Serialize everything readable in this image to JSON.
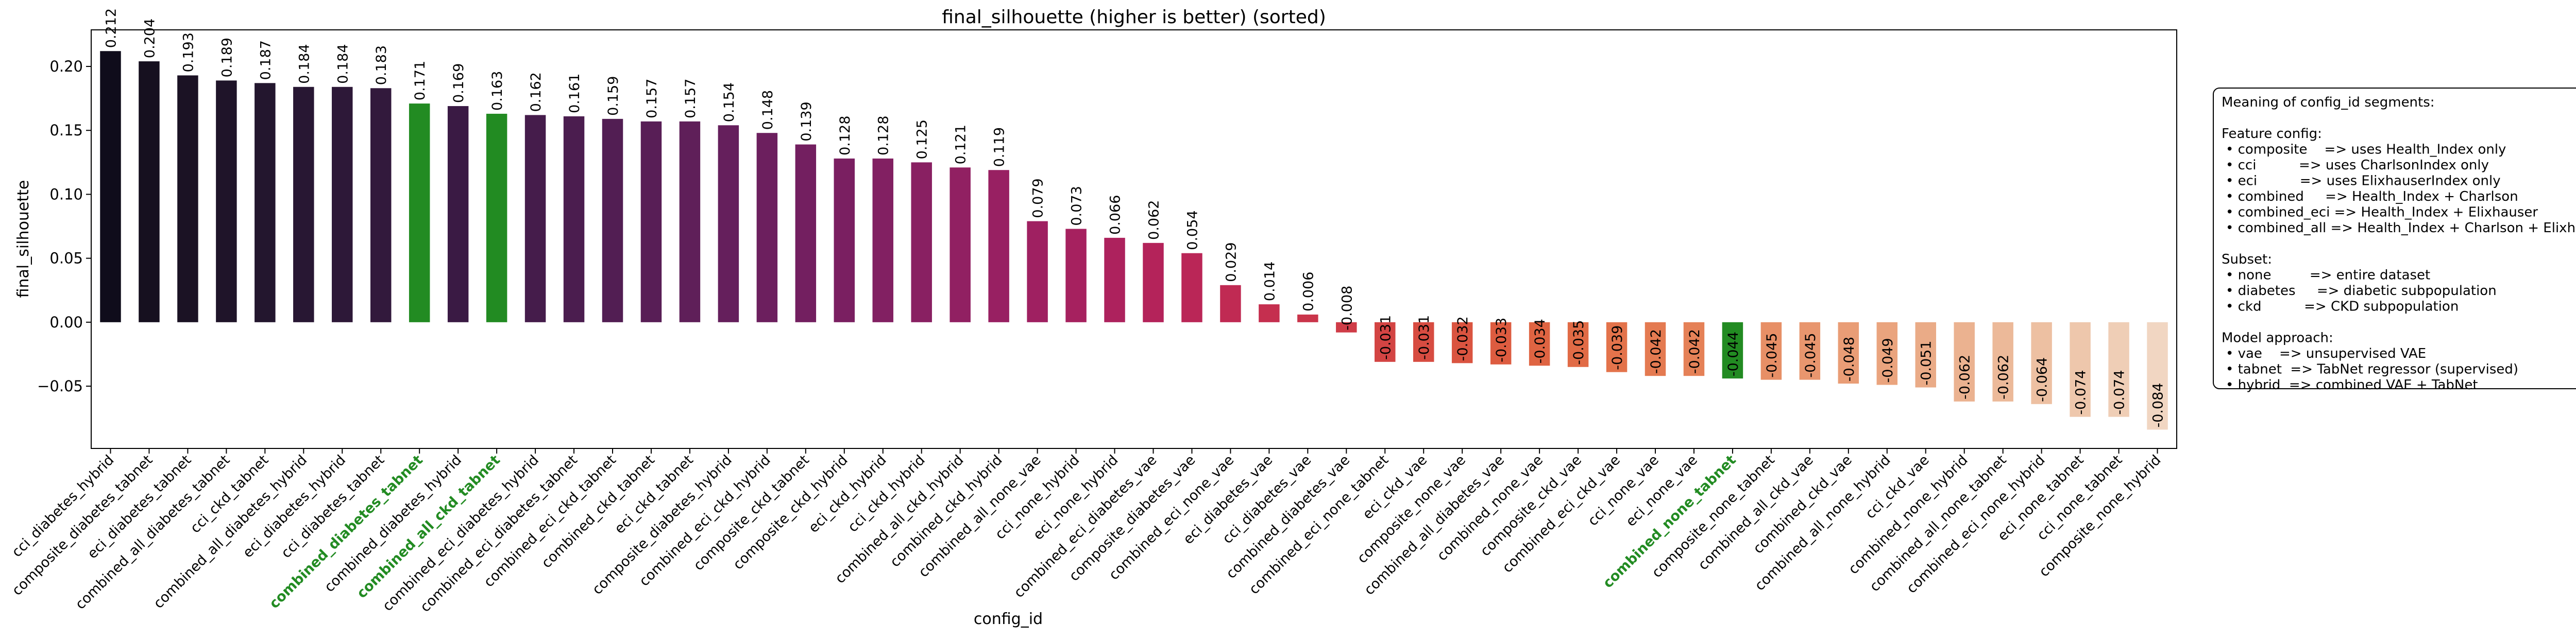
{
  "chart_data": {
    "type": "bar",
    "title": "final_silhouette (higher is better) (sorted)",
    "xlabel": "config_id",
    "ylabel": "final_silhouette",
    "categories": [
      "cci_diabetes_hybrid",
      "composite_diabetes_tabnet",
      "eci_diabetes_tabnet",
      "combined_all_diabetes_tabnet",
      "cci_ckd_tabnet",
      "combined_all_diabetes_hybrid",
      "eci_diabetes_hybrid",
      "cci_diabetes_tabnet",
      "combined_diabetes_tabnet",
      "combined_diabetes_hybrid",
      "combined_all_ckd_tabnet",
      "combined_eci_diabetes_hybrid",
      "combined_eci_diabetes_tabnet",
      "combined_eci_ckd_tabnet",
      "combined_ckd_tabnet",
      "eci_ckd_tabnet",
      "composite_diabetes_hybrid",
      "combined_eci_ckd_hybrid",
      "composite_ckd_tabnet",
      "composite_ckd_hybrid",
      "eci_ckd_hybrid",
      "cci_ckd_hybrid",
      "combined_all_ckd_hybrid",
      "combined_ckd_hybrid",
      "combined_all_none_vae",
      "cci_none_hybrid",
      "eci_none_hybrid",
      "combined_eci_diabetes_vae",
      "composite_diabetes_vae",
      "combined_eci_none_vae",
      "eci_diabetes_vae",
      "cci_diabetes_vae",
      "combined_diabetes_vae",
      "combined_eci_none_tabnet",
      "eci_ckd_vae",
      "composite_none_vae",
      "combined_all_diabetes_vae",
      "combined_none_vae",
      "composite_ckd_vae",
      "combined_eci_ckd_vae",
      "cci_none_vae",
      "eci_none_vae",
      "combined_none_tabnet",
      "composite_none_tabnet",
      "combined_all_ckd_vae",
      "combined_ckd_vae",
      "combined_all_none_hybrid",
      "cci_ckd_vae",
      "combined_none_hybrid",
      "combined_all_none_tabnet",
      "combined_eci_none_hybrid",
      "eci_none_tabnet",
      "cci_none_tabnet",
      "composite_none_hybrid"
    ],
    "values": [
      0.212,
      0.204,
      0.193,
      0.189,
      0.187,
      0.184,
      0.184,
      0.183,
      0.171,
      0.169,
      0.163,
      0.162,
      0.161,
      0.159,
      0.157,
      0.157,
      0.154,
      0.148,
      0.139,
      0.128,
      0.128,
      0.125,
      0.121,
      0.119,
      0.079,
      0.073,
      0.066,
      0.062,
      0.054,
      0.029,
      0.014,
      0.006,
      -0.008,
      -0.031,
      -0.031,
      -0.032,
      -0.033,
      -0.034,
      -0.035,
      -0.039,
      -0.042,
      -0.042,
      -0.044,
      -0.045,
      -0.045,
      -0.048,
      -0.049,
      -0.051,
      -0.062,
      -0.062,
      -0.064,
      -0.074,
      -0.074,
      -0.084
    ],
    "colors": [
      "#0f0c1b",
      "#16101f",
      "#1b1224",
      "#1f1429",
      "#23162e",
      "#281733",
      "#2d1838",
      "#32193c",
      "#228b22",
      "#3a1a44",
      "#228b22",
      "#451c4b",
      "#4b1d4f",
      "#521e53",
      "#581e56",
      "#5f1f59",
      "#651f5c",
      "#6c1f5e",
      "#731f60",
      "#7a1f61",
      "#822062",
      "#892062",
      "#912062",
      "#982062",
      "#9f2061",
      "#a6215f",
      "#ad225d",
      "#b4235a",
      "#ba2657",
      "#c02a53",
      "#c52f4f",
      "#ca354b",
      "#cf3c47",
      "#d34443",
      "#d74c41",
      "#da5440",
      "#dd5c40",
      "#df6442",
      "#e16b46",
      "#e3734b",
      "#e47a51",
      "#e58157",
      "#228b22",
      "#e78f66",
      "#e8966e",
      "#e99d76",
      "#eaa47e",
      "#eaab87",
      "#ebb290",
      "#ecb999",
      "#edc0a2",
      "#eec7ac",
      "#efceb6",
      "#f1d6c2"
    ],
    "highlighted": [
      8,
      10,
      42
    ],
    "highlight_color": "#228b22",
    "ylim": [
      -0.0987,
      0.2286
    ],
    "yticks": [
      {
        "value": -0.05,
        "label": "−0.05"
      },
      {
        "value": 0,
        "label": "0.00"
      },
      {
        "value": 0.05,
        "label": "0.05"
      },
      {
        "value": 0.1,
        "label": "0.10"
      },
      {
        "value": 0.15,
        "label": "0.15"
      },
      {
        "value": 0.2,
        "label": "0.20"
      }
    ],
    "grid": false,
    "legend_box": {
      "title": "Meaning of config_id segments:",
      "sections": [
        {
          "heading": "Feature config:",
          "items": [
            "• composite    => uses Health_Index only",
            "• cci          => uses CharlsonIndex only",
            "• eci          => uses ElixhauserIndex only",
            "• combined     => Health_Index + Charlson",
            "• combined_eci => Health_Index + Elixhauser",
            "• combined_all => Health_Index + Charlson + Elixhauser"
          ]
        },
        {
          "heading": "Subset:",
          "items": [
            "• none         => entire dataset",
            "• diabetes     => diabetic subpopulation",
            "• ckd          => CKD subpopulation"
          ]
        },
        {
          "heading": "Model approach:",
          "items": [
            "• vae    => unsupervised VAE",
            "• tabnet  => TabNet regressor (supervised)",
            "• hybrid  => combined VAE + TabNet"
          ]
        }
      ]
    }
  }
}
